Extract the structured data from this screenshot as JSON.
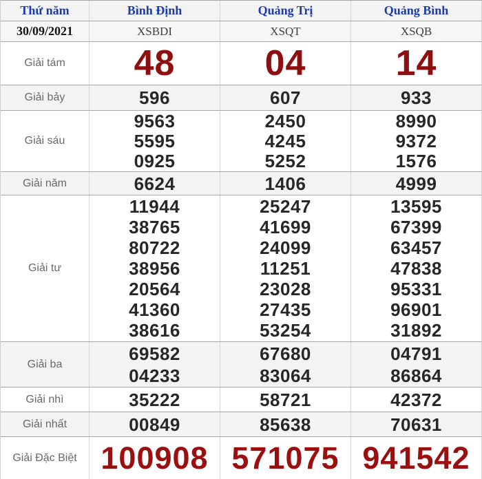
{
  "colors": {
    "header_blue": "#1c3aad",
    "prize_red": "#8e0f0f",
    "special_red": "#9a1010",
    "label_gray": "#696969",
    "number_black": "#272727",
    "row_gray": "#f3f3f3",
    "border_gray": "#a6a6a6"
  },
  "table": {
    "header": {
      "day": "Thứ năm",
      "provinces": [
        "Bình Định",
        "Quảng Trị",
        "Quảng Bình"
      ]
    },
    "subheader": {
      "date": "30/09/2021",
      "codes": [
        "XSBDI",
        "XSQT",
        "XSQB"
      ]
    },
    "prizes": [
      {
        "label": "Giải tám",
        "values": [
          [
            "48"
          ],
          [
            "04"
          ],
          [
            "14"
          ]
        ]
      },
      {
        "label": "Giải bảy",
        "values": [
          [
            "596"
          ],
          [
            "607"
          ],
          [
            "933"
          ]
        ]
      },
      {
        "label": "Giải sáu",
        "values": [
          [
            "9563",
            "5595",
            "0925"
          ],
          [
            "2450",
            "4245",
            "5252"
          ],
          [
            "8990",
            "9372",
            "1576"
          ]
        ]
      },
      {
        "label": "Giải năm",
        "values": [
          [
            "6624"
          ],
          [
            "1406"
          ],
          [
            "4999"
          ]
        ]
      },
      {
        "label": "Giải tư",
        "values": [
          [
            "11944",
            "38765",
            "80722",
            "38956",
            "20564",
            "41360",
            "38616"
          ],
          [
            "25247",
            "41699",
            "24099",
            "11251",
            "23028",
            "27435",
            "53254"
          ],
          [
            "13595",
            "67399",
            "63457",
            "47838",
            "95331",
            "96901",
            "31892"
          ]
        ]
      },
      {
        "label": "Giải ba",
        "values": [
          [
            "69582",
            "04233"
          ],
          [
            "67680",
            "83064"
          ],
          [
            "04791",
            "86864"
          ]
        ]
      },
      {
        "label": "Giải nhì",
        "values": [
          [
            "35222"
          ],
          [
            "58721"
          ],
          [
            "42372"
          ]
        ]
      },
      {
        "label": "Giải nhất",
        "values": [
          [
            "00849"
          ],
          [
            "85638"
          ],
          [
            "70631"
          ]
        ]
      },
      {
        "label": "Giải Đặc Biệt",
        "values": [
          [
            "100908"
          ],
          [
            "571075"
          ],
          [
            "941542"
          ]
        ]
      }
    ]
  }
}
